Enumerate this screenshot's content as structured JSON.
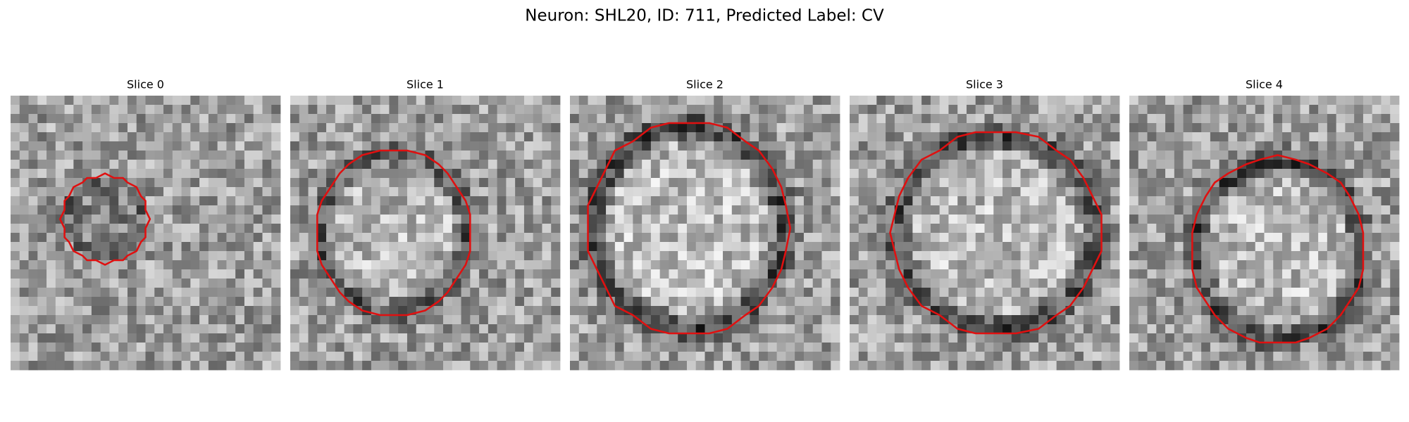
{
  "header": {
    "title": "Neuron: SHL20, ID: 711, Predicted Label: CV"
  },
  "panels": [
    {
      "title": "Slice 0"
    },
    {
      "title": "Slice 1"
    },
    {
      "title": "Slice 2"
    },
    {
      "title": "Slice 3"
    },
    {
      "title": "Slice 4"
    }
  ]
}
